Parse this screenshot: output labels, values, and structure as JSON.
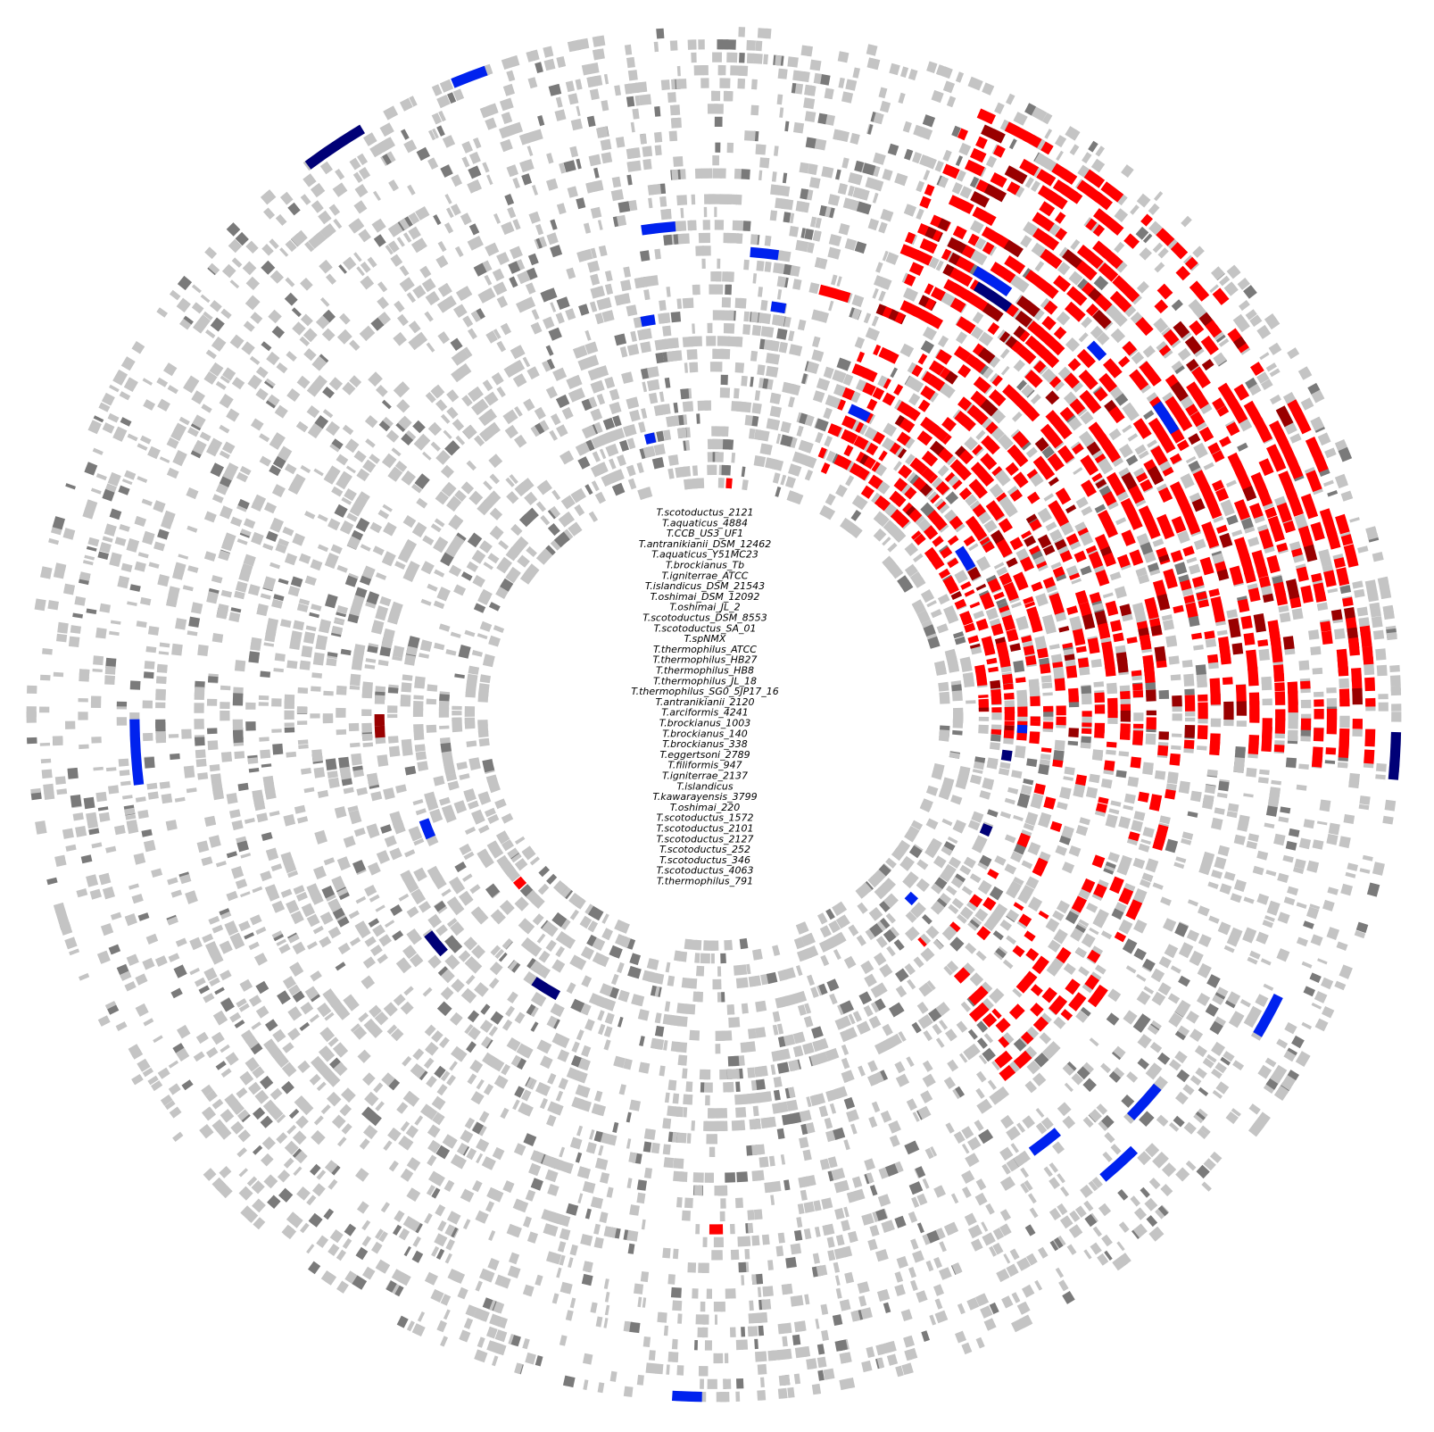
{
  "genome_labels": [
    "T.scotoductus_2121",
    "T.aquaticus_4884",
    "T.CCB_US3_UF1",
    "T.antranikianii_DSM_12462",
    "T.aquaticus_Y51MC23",
    "T.brockianus_Tb",
    "T.igniterrae_ATCC",
    "T.islandicus_DSM_21543",
    "T.oshimai_DSM_12092",
    "T.oshimai_JL_2",
    "T.scotoductus_DSM_8553",
    "T.scotoductus_SA_01",
    "T.spNMX",
    "T.thermophilus_ATCC",
    "T.thermophilus_HB27",
    "T.thermophilus_HB8",
    "T.thermophilus_JL_18",
    "T.thermophilus_SG0_5JP17_16",
    "T.antranikianii_2120",
    "T.arciformis_4241",
    "T.brockianus_1003",
    "T.brockianus_140",
    "T.brockianus_338",
    "T.eggertsoni_2789",
    "T.filiformis_947",
    "T.igniterrae_2137",
    "T.islandicus",
    "T.kawarayensis_3799",
    "T.oshimai_220",
    "T.scotoductus_1572",
    "T.scotoductus_2101",
    "T.scotoductus_2127",
    "T.scotoductus_252",
    "T.scotoductus_346",
    "T.scotoductus_4063",
    "T.thermophilus_791"
  ],
  "colors": {
    "background_light": "#c4c4c4",
    "background_dark": "#7a7a7a",
    "red": "#ff0000",
    "dark_red": "#990000",
    "blue": "#0022ee",
    "navy": "#000077"
  },
  "highlight_blocks": [
    {
      "ring": 35,
      "angle_start": -22.5,
      "angle_end": -19.5,
      "color": "blue"
    },
    {
      "ring": 35,
      "angle_start": -36.5,
      "angle_end": -31.0,
      "color": "navy"
    },
    {
      "ring": 35,
      "angle_start": 91.5,
      "angle_end": 95.5,
      "color": "navy"
    },
    {
      "ring": 35,
      "angle_start": 181.0,
      "angle_end": 183.5,
      "color": "blue"
    },
    {
      "ring": 27,
      "angle_start": 263.0,
      "angle_end": 269.5,
      "color": "blue"
    },
    {
      "ring": 31,
      "angle_start": 116.5,
      "angle_end": 120.5,
      "color": "blue"
    },
    {
      "ring": 29,
      "angle_start": 136.0,
      "angle_end": 140.0,
      "color": "blue"
    },
    {
      "ring": 27,
      "angle_start": 130.0,
      "angle_end": 134.0,
      "color": "blue"
    },
    {
      "ring": 24,
      "angle_start": 140.5,
      "angle_end": 144.0,
      "color": "blue"
    },
    {
      "ring": 20,
      "angle_start": -8.5,
      "angle_end": -4.5,
      "color": "blue"
    },
    {
      "ring": 18,
      "angle_start": 4.5,
      "angle_end": 8.0,
      "color": "blue"
    },
    {
      "ring": 14,
      "angle_start": 8.0,
      "angle_end": 10.0,
      "color": "blue"
    },
    {
      "ring": 13,
      "angle_start": -10.5,
      "angle_end": -8.5,
      "color": "blue"
    },
    {
      "ring": 22,
      "angle_start": 30.5,
      "angle_end": 35.0,
      "color": "blue"
    },
    {
      "ring": 21,
      "angle_start": 31.5,
      "angle_end": 36.0,
      "color": "navy"
    },
    {
      "ring": 23,
      "angle_start": 45.5,
      "angle_end": 47.5,
      "color": "blue"
    },
    {
      "ring": 24,
      "angle_start": 55.0,
      "angle_end": 58.5,
      "color": "blue"
    },
    {
      "ring": 8,
      "angle_start": 24.0,
      "angle_end": 27.5,
      "color": "blue"
    },
    {
      "ring": 4,
      "angle_start": -14.0,
      "angle_end": -12.0,
      "color": "blue"
    },
    {
      "ring": 7,
      "angle_start": 209.0,
      "angle_end": 214.0,
      "color": "navy"
    },
    {
      "ring": 10,
      "angle_start": 228.5,
      "angle_end": 232.5,
      "color": "navy"
    },
    {
      "ring": 6,
      "angle_start": 246.5,
      "angle_end": 250.0,
      "color": "blue"
    },
    {
      "ring": 5,
      "angle_start": 56.0,
      "angle_end": 60.5,
      "color": "blue"
    },
    {
      "ring": 6,
      "angle_start": 92.0,
      "angle_end": 93.5,
      "color": "blue"
    },
    {
      "ring": 5,
      "angle_start": 97.0,
      "angle_end": 99.0,
      "color": "navy"
    },
    {
      "ring": 5,
      "angle_start": 112.0,
      "angle_end": 114.0,
      "color": "navy"
    },
    {
      "ring": 3,
      "angle_start": 132.0,
      "angle_end": 134.0,
      "color": "blue"
    },
    {
      "ring": 0,
      "angle_start": 3.0,
      "angle_end": 4.5,
      "color": "red"
    },
    {
      "ring": 16,
      "angle_start": 14.0,
      "angle_end": 18.0,
      "color": "red"
    },
    {
      "ring": 10,
      "angle_start": 36.0,
      "angle_end": 40.0,
      "color": "red"
    },
    {
      "ring": 9,
      "angle_start": 44.0,
      "angle_end": 47.0,
      "color": "red"
    },
    {
      "ring": 19,
      "angle_start": 125.0,
      "angle_end": 127.5,
      "color": "red"
    },
    {
      "ring": 13,
      "angle_start": 137.0,
      "angle_end": 139.5,
      "color": "red"
    },
    {
      "ring": 22,
      "angle_start": 179.0,
      "angle_end": 180.5,
      "color": "red"
    },
    {
      "ring": 2,
      "angle_start": 228.0,
      "angle_end": 230.0,
      "color": "red"
    },
    {
      "ring": 8,
      "angle_start": 266.0,
      "angle_end": 268.0,
      "color": "dark_red"
    },
    {
      "ring": 8,
      "angle_start": 268.0,
      "angle_end": 270.0,
      "color": "dark_red"
    }
  ],
  "red_cluster": {
    "ring_from": 3,
    "ring_to": 33,
    "angle_from": 22,
    "angle_to": 94,
    "density": 0.34,
    "color": "red",
    "accent": "dark_red"
  },
  "red_tail": {
    "ring_from": 6,
    "ring_to": 18,
    "angle_from": 94,
    "angle_to": 140,
    "density": 0.12,
    "color": "red"
  }
}
